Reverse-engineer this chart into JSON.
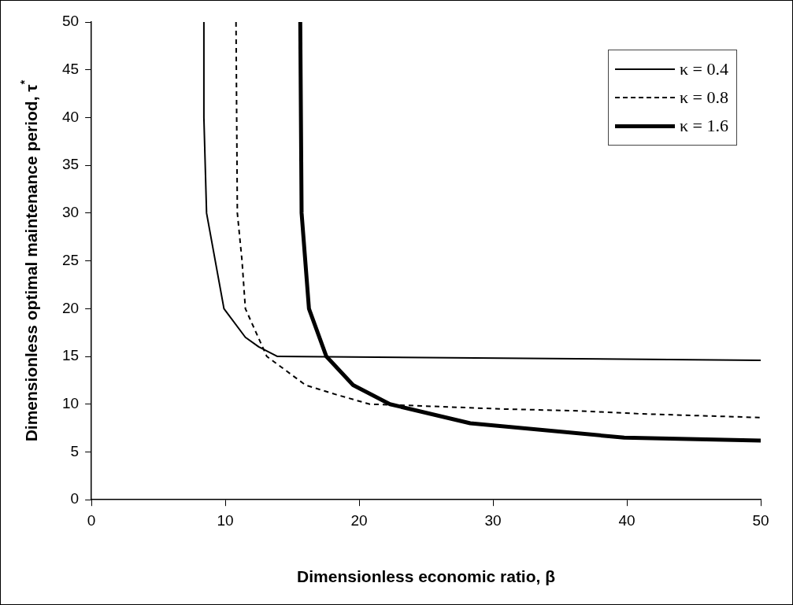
{
  "chart_data": {
    "type": "line",
    "xlabel": "Dimensionless economic ratio, β",
    "ylabel": "Dimensionless optimal maintenance period, τ$^{*}$",
    "xlim": [
      0,
      50
    ],
    "xticks": [
      0,
      10,
      20,
      30,
      40,
      50
    ],
    "ylim": [
      0,
      50
    ],
    "yticks": [
      0,
      5,
      10,
      15,
      20,
      25,
      30,
      35,
      40,
      45,
      50
    ],
    "grid": false,
    "legend": "top right",
    "marker": "none",
    "series": [
      {
        "name": "κ = 0.4",
        "color": "#000000",
        "line_style": "solid",
        "x": [
          8.4,
          8.4,
          8.6,
          9.9,
          11.5,
          12.5,
          13.9,
          50
        ],
        "values": [
          50,
          40,
          30,
          20,
          17,
          16,
          15,
          14.6
        ]
      },
      {
        "name": "κ = 0.8",
        "color": "#000000",
        "line_style": "dashed",
        "x": [
          10.8,
          10.85,
          10.9,
          11.25,
          11.5,
          13.1,
          16,
          18.3,
          20.8,
          23.1,
          30.7,
          36.4,
          40.9,
          45.4,
          50
        ],
        "values": [
          50,
          40,
          30,
          25,
          20,
          15,
          12,
          11,
          10,
          9.9,
          9.5,
          9.3,
          9,
          8.8,
          8.6
        ]
      },
      {
        "name": "κ = 1.6",
        "color": "#000000",
        "line_style": "solid",
        "x": [
          15.6,
          15.7,
          16.25,
          17.55,
          19.55,
          22.3,
          28.3,
          39.8,
          50
        ],
        "values": [
          50,
          30,
          20,
          15,
          12,
          10,
          8,
          6.5,
          6.2
        ]
      }
    ]
  }
}
